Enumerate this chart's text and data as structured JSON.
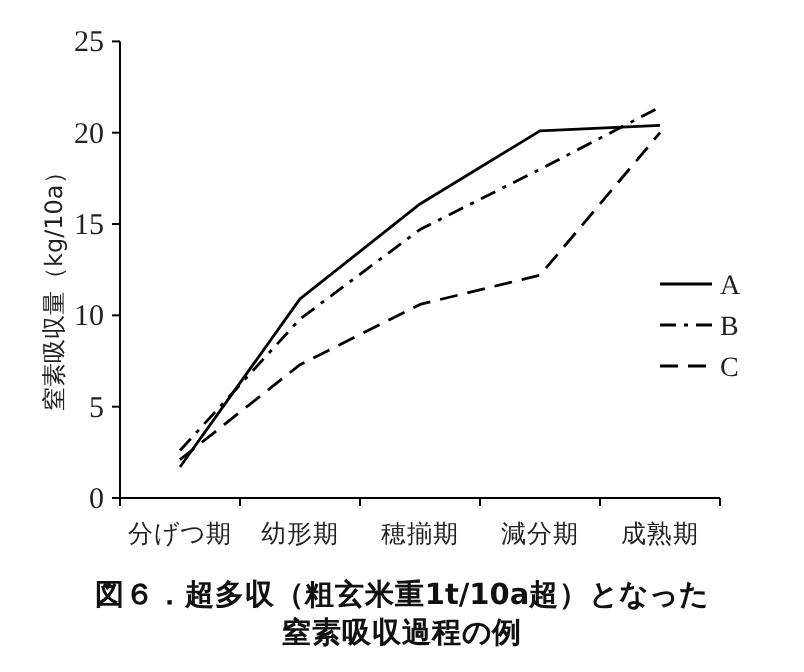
{
  "chart_data": {
    "type": "line",
    "title": "図６．超多収（粗玄米重1t/10a超）となった窒素吸収過程の例",
    "ylabel": "窒素吸収量（kg/10a）",
    "categories": [
      "分げつ期",
      "幼形期",
      "穂揃期",
      "減分期",
      "成熟期"
    ],
    "ylim": [
      0,
      25
    ],
    "yticks": [
      0,
      5,
      10,
      15,
      20,
      25
    ],
    "legend": "right",
    "marker": "none",
    "grid": false,
    "series": [
      {
        "name": "A",
        "color": "#000000",
        "line_style": "solid",
        "values": [
          1.7,
          10.9,
          16.1,
          20.1,
          20.4
        ]
      },
      {
        "name": "B",
        "color": "#000000",
        "line_style": "dashdot",
        "values": [
          2.6,
          9.8,
          14.7,
          18.0,
          21.4
        ]
      },
      {
        "name": "C",
        "color": "#000000",
        "line_style": "dashed",
        "values": [
          2.1,
          7.3,
          10.6,
          12.2,
          20.0
        ]
      }
    ]
  }
}
